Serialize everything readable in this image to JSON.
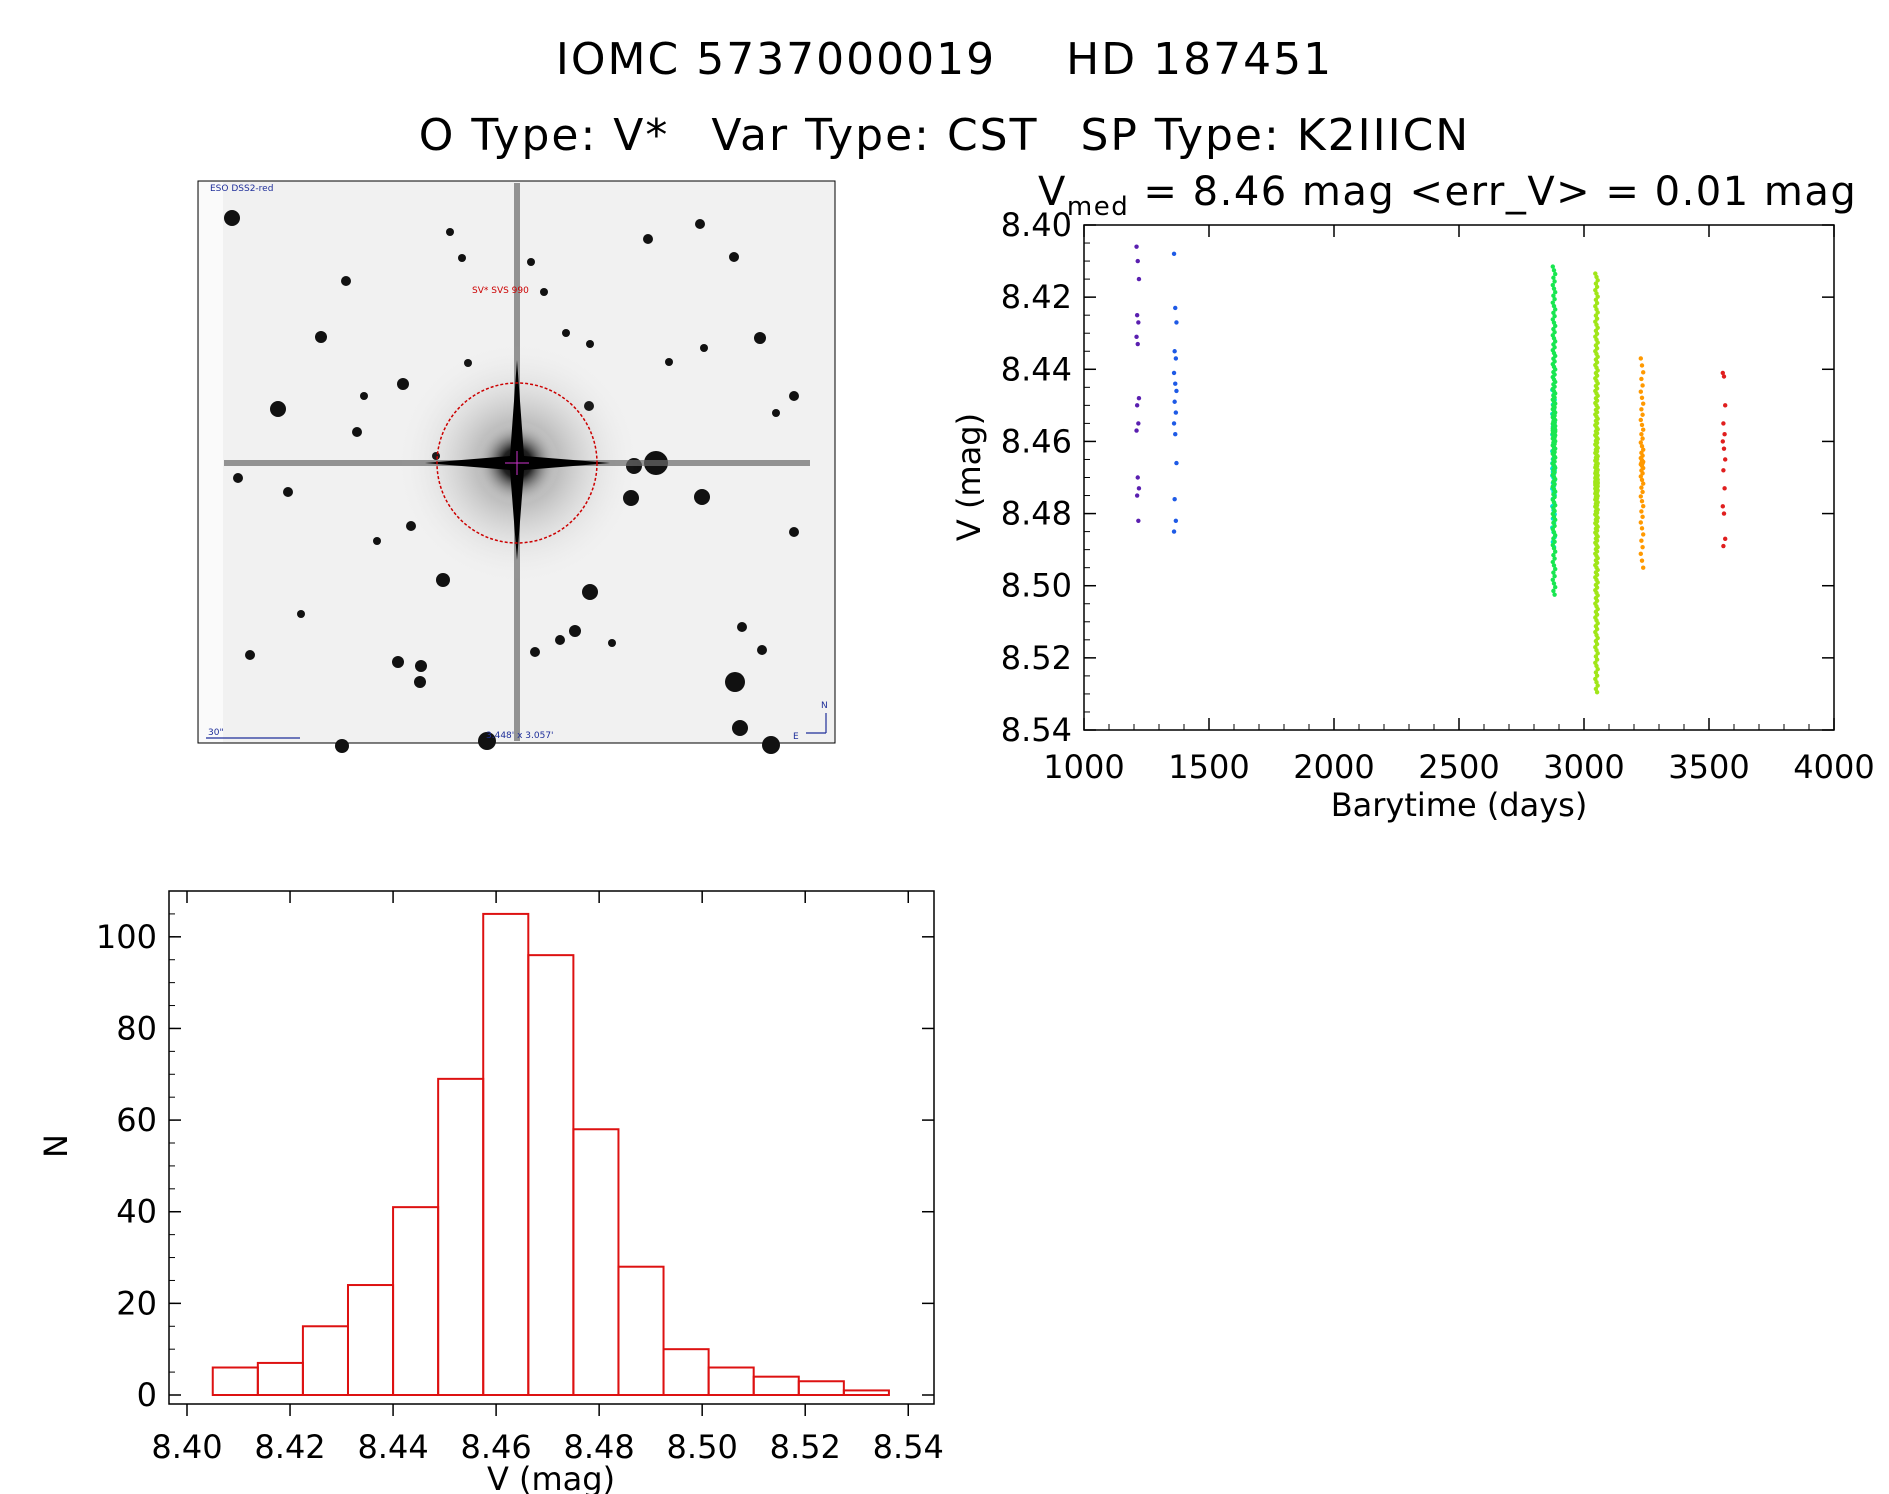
{
  "header": {
    "object_id": "IOMC 5737000019",
    "hd_name": "HD 187451",
    "o_type": "O Type: V*",
    "var_type": "Var Type: CST",
    "sp_type": "SP Type: K2IIICN"
  },
  "sky_image": {
    "survey_label": "ESO DSS2-red",
    "object_label": "SV* SVS 990",
    "scale_label": "30\"",
    "size_label": "3.448' x 3.057'",
    "north": "N",
    "east": "E",
    "circle_color": "#cc0000"
  },
  "chart_data": [
    {
      "type": "scatter",
      "title_parts": {
        "v": "V",
        "sub": "med",
        "rest": " = 8.46 mag  <err_V> = 0.01 mag"
      },
      "xlabel": "Barytime (days)",
      "ylabel": "V (mag)",
      "xlim": [
        1000,
        4000
      ],
      "ylim": [
        8.54,
        8.4
      ],
      "y_inverted": true,
      "x_ticks": [
        1000,
        1500,
        2000,
        2500,
        3000,
        3500,
        4000
      ],
      "y_ticks": [
        "8.40",
        "8.42",
        "8.44",
        "8.46",
        "8.48",
        "8.50",
        "8.52",
        "8.54"
      ],
      "series": [
        {
          "x": 1215,
          "color": "#5a1fb0",
          "values": [
            8.406,
            8.41,
            8.415,
            8.425,
            8.427,
            8.431,
            8.433,
            8.448,
            8.45,
            8.455,
            8.457,
            8.47,
            8.473,
            8.475,
            8.482
          ]
        },
        {
          "x": 1365,
          "color": "#1e5ae6",
          "values": [
            8.408,
            8.423,
            8.427,
            8.435,
            8.437,
            8.441,
            8.444,
            8.446,
            8.449,
            8.452,
            8.455,
            8.458,
            8.466,
            8.476,
            8.482,
            8.485
          ]
        },
        {
          "x": 2878,
          "color": "#00e0d0",
          "range": [
            8.445,
            8.49
          ],
          "count": 50
        },
        {
          "x": 2880,
          "color": "#19e650",
          "range": [
            8.411,
            8.503
          ],
          "count": 140
        },
        {
          "x": 3050,
          "color": "#a0e619",
          "range": [
            8.413,
            8.53
          ],
          "count": 200
        },
        {
          "x": 3232,
          "color": "#ff9900",
          "range": [
            8.436,
            8.496
          ],
          "count": 48
        },
        {
          "x": 3560,
          "color": "#e01e1e",
          "values": [
            8.441,
            8.442,
            8.45,
            8.455,
            8.458,
            8.46,
            8.462,
            8.465,
            8.468,
            8.473,
            8.478,
            8.48,
            8.487,
            8.489
          ]
        }
      ]
    },
    {
      "type": "bar",
      "xlabel": "V (mag)",
      "ylabel": "N",
      "xlim": [
        8.4,
        8.545
      ],
      "ylim": [
        0,
        110
      ],
      "x_ticks": [
        "8.40",
        "8.42",
        "8.44",
        "8.46",
        "8.48",
        "8.50",
        "8.52",
        "8.54"
      ],
      "y_ticks": [
        0,
        20,
        40,
        60,
        80,
        100
      ],
      "bar_color": "#dd1111",
      "bin_width": 0.00875,
      "bin_edges": [
        8.405,
        8.41375,
        8.4225,
        8.43125,
        8.44,
        8.44875,
        8.4575,
        8.46625,
        8.475,
        8.48375,
        8.4925,
        8.50125,
        8.51,
        8.51875,
        8.5275
      ],
      "values": [
        6,
        7,
        15,
        24,
        41,
        69,
        105,
        96,
        58,
        28,
        10,
        6,
        4,
        3,
        1
      ]
    }
  ]
}
